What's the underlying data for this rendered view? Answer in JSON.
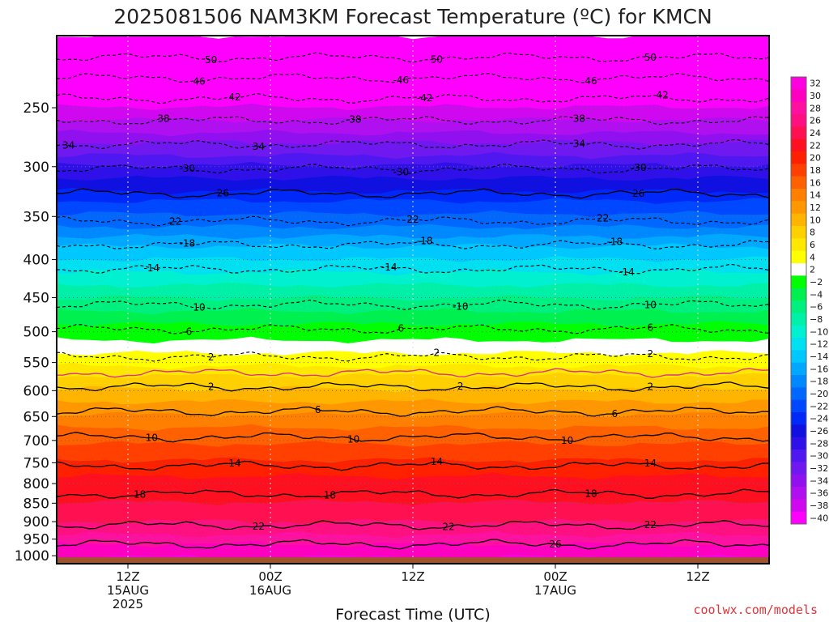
{
  "title": "2025081506 NAM3KM Forecast Temperature (ºC) for KMCN",
  "credit": "coolwx.com/models",
  "chart_data": {
    "type": "heatmap",
    "title": "2025081506 NAM3KM Forecast Temperature (ºC) for KMCN",
    "xlabel": "Forecast Time (UTC)",
    "ylabel": "",
    "x_range_hours": [
      0,
      60
    ],
    "y_axis": {
      "scale": "log-pressure",
      "ticks": [
        250,
        300,
        350,
        400,
        450,
        500,
        550,
        600,
        650,
        700,
        750,
        800,
        850,
        900,
        950,
        1000
      ],
      "range": [
        200,
        1025
      ]
    },
    "x_ticks": [
      {
        "hour": 6,
        "lines": [
          "12Z",
          "15AUG",
          "2025"
        ]
      },
      {
        "hour": 18,
        "lines": [
          "00Z",
          "16AUG"
        ]
      },
      {
        "hour": 30,
        "lines": [
          "12Z"
        ]
      },
      {
        "hour": 42,
        "lines": [
          "00Z",
          "17AUG"
        ]
      },
      {
        "hour": 54,
        "lines": [
          "12Z"
        ]
      }
    ],
    "grid": true,
    "levels": [
      {
        "p": 205,
        "t": -52
      },
      {
        "p": 220,
        "t": -48
      },
      {
        "p": 235,
        "t": -44
      },
      {
        "p": 250,
        "t": -40
      },
      {
        "p": 270,
        "t": -36
      },
      {
        "p": 290,
        "t": -32
      },
      {
        "p": 310,
        "t": -28
      },
      {
        "p": 335,
        "t": -24
      },
      {
        "p": 360,
        "t": -20
      },
      {
        "p": 385,
        "t": -16
      },
      {
        "p": 415,
        "t": -12
      },
      {
        "p": 450,
        "t": -8
      },
      {
        "p": 490,
        "t": -4
      },
      {
        "p": 535,
        "t": 0
      },
      {
        "p": 575,
        "t": 4
      },
      {
        "p": 620,
        "t": 8
      },
      {
        "p": 675,
        "t": 12
      },
      {
        "p": 740,
        "t": 16
      },
      {
        "p": 800,
        "t": 19
      },
      {
        "p": 850,
        "t": 20
      },
      {
        "p": 900,
        "t": 22
      },
      {
        "p": 950,
        "t": 25
      },
      {
        "p": 1000,
        "t": 28
      }
    ],
    "contours": [
      {
        "t": -50,
        "p": 214,
        "style": "dashed",
        "labels": [
          {
            "h": 13,
            "text": "50"
          },
          {
            "h": 32,
            "text": "50"
          },
          {
            "h": 50,
            "text": "50"
          }
        ]
      },
      {
        "t": -46,
        "p": 228,
        "style": "dashed",
        "labels": [
          {
            "h": 12,
            "text": "46"
          },
          {
            "h": 29,
            "text": "-46"
          },
          {
            "h": 45,
            "text": "46"
          }
        ]
      },
      {
        "t": -42,
        "p": 243,
        "style": "dashed",
        "labels": [
          {
            "h": 15,
            "text": "42"
          },
          {
            "h": 31,
            "text": "-42"
          },
          {
            "h": 51,
            "text": "42"
          }
        ]
      },
      {
        "t": -38,
        "p": 260,
        "style": "dashed",
        "labels": [
          {
            "h": 9,
            "text": "38"
          },
          {
            "h": 25,
            "text": "-38"
          },
          {
            "h": 44,
            "text": "38"
          }
        ]
      },
      {
        "t": -34,
        "p": 280,
        "style": "dashed",
        "labels": [
          {
            "h": 1,
            "text": "34"
          },
          {
            "h": 17,
            "text": "34"
          },
          {
            "h": 44,
            "text": "34"
          }
        ]
      },
      {
        "t": -30,
        "p": 302,
        "style": "dashed",
        "labels": [
          {
            "h": 11,
            "text": "-30"
          },
          {
            "h": 29,
            "text": "-30"
          },
          {
            "h": 49,
            "text": "-30"
          }
        ]
      },
      {
        "t": -26,
        "p": 326,
        "style": "solid",
        "labels": [
          {
            "h": 14,
            "text": "26"
          },
          {
            "h": 49,
            "text": "26"
          }
        ]
      },
      {
        "t": -22,
        "p": 355,
        "style": "dashed",
        "labels": [
          {
            "h": 10,
            "text": "22"
          },
          {
            "h": 30,
            "text": "22"
          },
          {
            "h": 46,
            "text": "22"
          }
        ]
      },
      {
        "t": -18,
        "p": 382,
        "style": "dashed",
        "labels": [
          {
            "h": 11,
            "text": "-18"
          },
          {
            "h": 31,
            "text": "-18"
          },
          {
            "h": 47,
            "text": "-18"
          }
        ]
      },
      {
        "t": -14,
        "p": 412,
        "style": "dashed",
        "labels": [
          {
            "h": 8,
            "text": "-14"
          },
          {
            "h": 28,
            "text": "-14"
          },
          {
            "h": 48,
            "text": "-14"
          }
        ]
      },
      {
        "t": -10,
        "p": 460,
        "style": "dashed",
        "labels": [
          {
            "h": 12,
            "text": "10"
          },
          {
            "h": 34,
            "text": "-10"
          },
          {
            "h": 50,
            "text": "10"
          }
        ]
      },
      {
        "t": -6,
        "p": 496,
        "style": "dashed",
        "labels": [
          {
            "h": 11,
            "text": "-6"
          },
          {
            "h": 29,
            "text": "6"
          },
          {
            "h": 50,
            "text": "6"
          }
        ]
      },
      {
        "t": -2,
        "p": 540,
        "style": "dashed",
        "labels": [
          {
            "h": 13,
            "text": "2"
          },
          {
            "h": 32,
            "text": "2"
          },
          {
            "h": 50,
            "text": "2"
          }
        ]
      },
      {
        "t": 0,
        "p": 568,
        "style": "freezing",
        "labels": []
      },
      {
        "t": 2,
        "p": 593,
        "style": "solid",
        "labels": [
          {
            "h": 13,
            "text": "2"
          },
          {
            "h": 34,
            "text": "2"
          },
          {
            "h": 50,
            "text": "2"
          }
        ]
      },
      {
        "t": 6,
        "p": 640,
        "style": "solid",
        "labels": [
          {
            "h": 22,
            "text": "6"
          },
          {
            "h": 47,
            "text": "6"
          }
        ]
      },
      {
        "t": 10,
        "p": 693,
        "style": "solid",
        "labels": [
          {
            "h": 8,
            "text": "10"
          },
          {
            "h": 25,
            "text": "10"
          },
          {
            "h": 43,
            "text": "10"
          }
        ]
      },
      {
        "t": 14,
        "p": 757,
        "style": "solid",
        "labels": [
          {
            "h": 15,
            "text": "14"
          },
          {
            "h": 32,
            "text": "14"
          },
          {
            "h": 50,
            "text": "14"
          }
        ]
      },
      {
        "t": 18,
        "p": 826,
        "style": "solid",
        "labels": [
          {
            "h": 7,
            "text": "18"
          },
          {
            "h": 23,
            "text": "18"
          },
          {
            "h": 45,
            "text": "18"
          }
        ]
      },
      {
        "t": 22,
        "p": 910,
        "style": "solid",
        "labels": [
          {
            "h": 17,
            "text": "22"
          },
          {
            "h": 33,
            "text": "22"
          },
          {
            "h": 50,
            "text": "22"
          }
        ]
      },
      {
        "t": 26,
        "p": 965,
        "style": "solid",
        "labels": [
          {
            "h": 42,
            "text": "26"
          }
        ]
      }
    ],
    "ground_pressure": 1000,
    "colorbar": {
      "labels": [
        "32",
        "30",
        "28",
        "26",
        "24",
        "22",
        "20",
        "18",
        "16",
        "14",
        "12",
        "10",
        "8",
        "6",
        "4",
        "2",
        "−2",
        "−4",
        "−6",
        "−8",
        "−10",
        "−12",
        "−14",
        "−16",
        "−18",
        "−20",
        "−22",
        "−24",
        "−26",
        "−28",
        "−30",
        "−32",
        "−34",
        "−36",
        "−38",
        "−40"
      ],
      "colors": [
        "#ff00e0",
        "#ff00c0",
        "#ff10a0",
        "#ff1080",
        "#ff1050",
        "#ff1020",
        "#ff2000",
        "#ff4000",
        "#ff6000",
        "#ff8000",
        "#ff9800",
        "#ffb400",
        "#ffd000",
        "#ffe800",
        "#ffff00",
        "#ffffff",
        "#00ff00",
        "#00f050",
        "#00f080",
        "#00f0a8",
        "#00f0d0",
        "#00e0f0",
        "#00c8ff",
        "#00a8ff",
        "#0088ff",
        "#0068ff",
        "#0048ff",
        "#0028f8",
        "#1010e0",
        "#3010e8",
        "#5018f0",
        "#7018f0",
        "#9010f0",
        "#b010f0",
        "#d008f0",
        "#ff00ff"
      ]
    }
  }
}
